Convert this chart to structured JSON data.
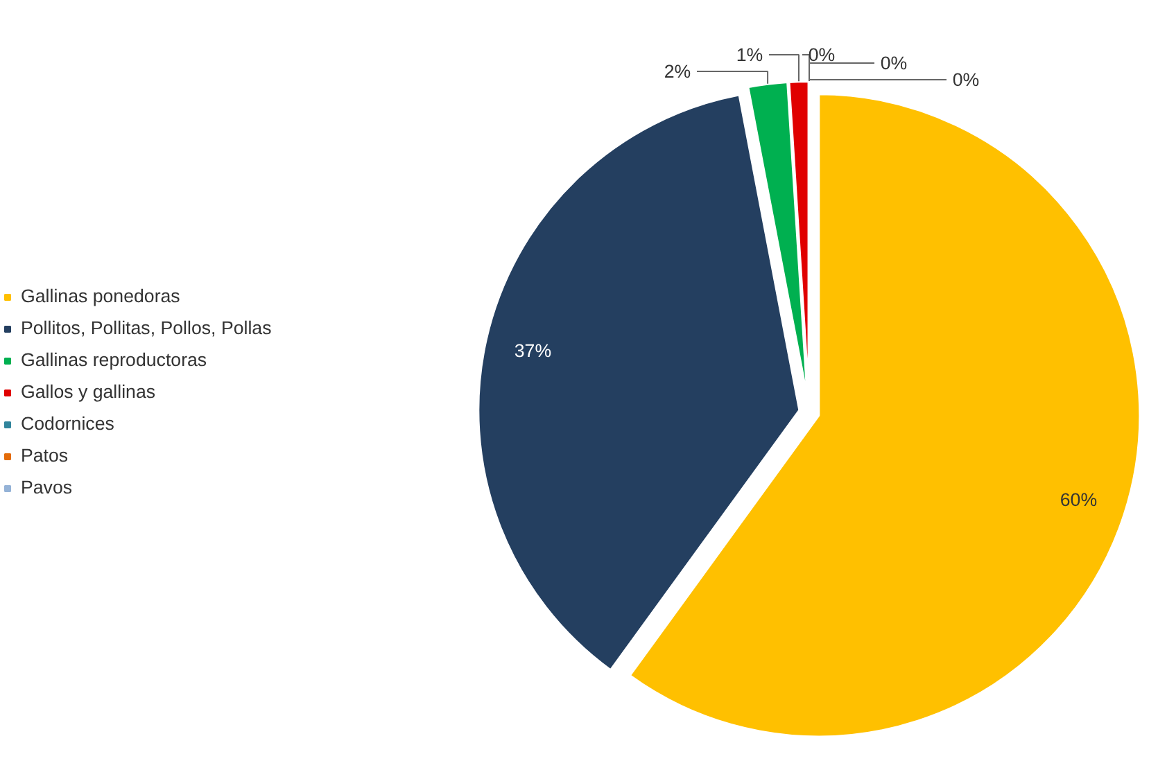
{
  "chart_data": {
    "type": "pie",
    "categories": [
      "Gallinas ponedoras",
      "Pollitos, Pollitas, Pollos, Pollas",
      "Gallinas reproductoras",
      "Gallos y gallinas",
      "Codornices",
      "Patos",
      "Pavos"
    ],
    "values": [
      60,
      37,
      2,
      1,
      0,
      0,
      0
    ],
    "colors": [
      "#ffc000",
      "#243f60",
      "#00b050",
      "#e00000",
      "#31859c",
      "#e46c0a",
      "#95b3d7"
    ],
    "value_labels": [
      "60%",
      "37%",
      "2%",
      "1%",
      "0%",
      "0%",
      "0%"
    ],
    "legend": "left"
  }
}
